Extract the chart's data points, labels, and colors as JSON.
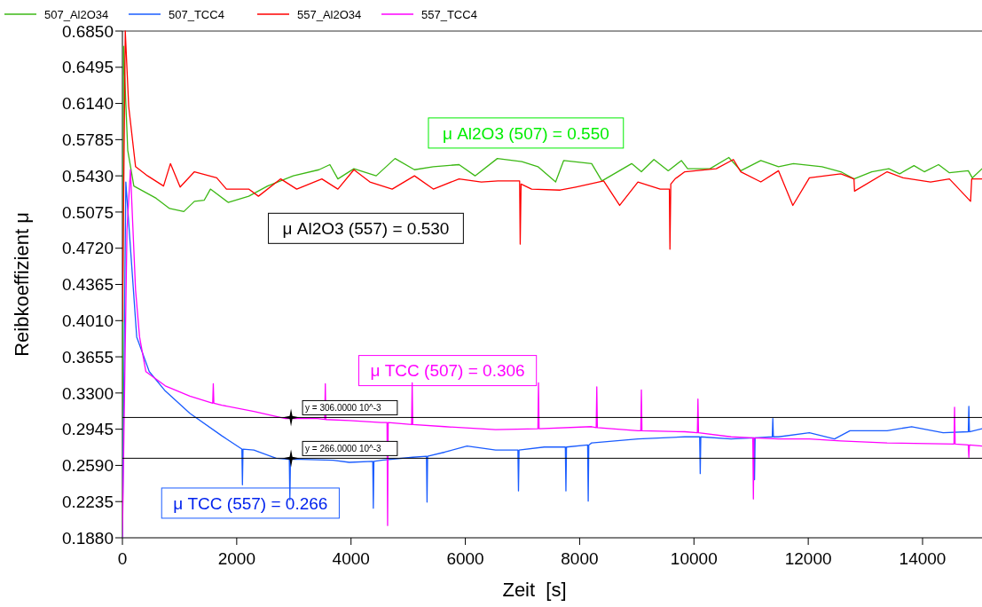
{
  "chart_data": {
    "type": "line",
    "xlabel": "Zeit  [s]",
    "ylabel": "Reibkoeffizient μ",
    "legend": "top left",
    "xlim": [
      0,
      15040
    ],
    "ylim": [
      0.188,
      0.685
    ],
    "xticks": [
      0,
      2000,
      4000,
      6000,
      8000,
      10000,
      12000,
      14000
    ],
    "yticks": [
      {
        "value": 0.188,
        "label": "0.1880"
      },
      {
        "value": 0.2235,
        "label": "0.2235"
      },
      {
        "value": 0.259,
        "label": "0.2590"
      },
      {
        "value": 0.2945,
        "label": "0.2945"
      },
      {
        "value": 0.33,
        "label": "0.3300"
      },
      {
        "value": 0.3655,
        "label": "0.3655"
      },
      {
        "value": 0.401,
        "label": "0.4010"
      },
      {
        "value": 0.4365,
        "label": "0.4365"
      },
      {
        "value": 0.472,
        "label": "0.4720"
      },
      {
        "value": 0.5075,
        "label": "0.5075"
      },
      {
        "value": 0.543,
        "label": "0.5430"
      },
      {
        "value": 0.5785,
        "label": "0.5785"
      },
      {
        "value": 0.614,
        "label": "0.6140"
      },
      {
        "value": 0.6495,
        "label": "0.6495"
      },
      {
        "value": 0.685,
        "label": "0.6850"
      }
    ],
    "series": [
      {
        "name": "507_Al2O34",
        "color": "#3cb814",
        "x": [
          0,
          20,
          93,
          200,
          590,
          825,
          1075,
          1260,
          1430,
          1540,
          1850,
          2210,
          2540,
          2990,
          3440,
          3630,
          3770,
          4050,
          4440,
          4770,
          5110,
          5440,
          5890,
          6170,
          6560,
          6990,
          7270,
          7580,
          7720,
          8210,
          8390,
          8910,
          9080,
          9300,
          9550,
          9780,
          9890,
          10280,
          10610,
          10820,
          11170,
          11480,
          11740,
          12240,
          12570,
          12800,
          13110,
          13410,
          13600,
          13850,
          14030,
          14280,
          14470,
          14800,
          14870,
          15040
        ],
        "values": [
          0.2,
          0.67,
          0.568,
          0.533,
          0.521,
          0.511,
          0.508,
          0.518,
          0.519,
          0.53,
          0.517,
          0.523,
          0.533,
          0.543,
          0.549,
          0.554,
          0.54,
          0.55,
          0.543,
          0.56,
          0.549,
          0.552,
          0.554,
          0.543,
          0.56,
          0.557,
          0.552,
          0.537,
          0.558,
          0.555,
          0.538,
          0.555,
          0.547,
          0.559,
          0.548,
          0.558,
          0.55,
          0.55,
          0.561,
          0.548,
          0.558,
          0.552,
          0.555,
          0.552,
          0.547,
          0.54,
          0.547,
          0.55,
          0.545,
          0.553,
          0.547,
          0.554,
          0.546,
          0.548,
          0.541,
          0.55
        ]
      },
      {
        "name": "507_TCC4",
        "color": "#1a5cff",
        "x": [
          0,
          60,
          250,
          470,
          750,
          1180,
          1740,
          2090,
          2100,
          2110,
          2300,
          2690,
          2920,
          2930,
          2940,
          3130,
          3690,
          3970,
          4380,
          4390,
          4400,
          4530,
          5080,
          5320,
          5330,
          5340,
          5640,
          6030,
          6530,
          6920,
          6930,
          6940,
          7380,
          7750,
          7760,
          7770,
          8140,
          8150,
          8160,
          8210,
          9020,
          9840,
          10100,
          10110,
          10120,
          10650,
          11050,
          11060,
          11070,
          11370,
          11380,
          11390,
          11480,
          12020,
          12460,
          12730,
          13380,
          13810,
          14360,
          14800,
          14810,
          14820,
          15040
        ],
        "values": [
          0.189,
          0.537,
          0.385,
          0.351,
          0.332,
          0.31,
          0.288,
          0.275,
          0.24,
          0.275,
          0.274,
          0.266,
          0.265,
          0.225,
          0.265,
          0.265,
          0.264,
          0.262,
          0.263,
          0.217,
          0.263,
          0.264,
          0.267,
          0.268,
          0.223,
          0.268,
          0.272,
          0.278,
          0.274,
          0.274,
          0.234,
          0.274,
          0.277,
          0.277,
          0.234,
          0.277,
          0.279,
          0.224,
          0.279,
          0.281,
          0.285,
          0.287,
          0.287,
          0.251,
          0.287,
          0.285,
          0.286,
          0.245,
          0.286,
          0.287,
          0.305,
          0.287,
          0.287,
          0.291,
          0.285,
          0.293,
          0.293,
          0.297,
          0.291,
          0.292,
          0.317,
          0.292,
          0.295
        ]
      },
      {
        "name": "557_Al2O34",
        "color": "#ff0000",
        "x": [
          0,
          50,
          110,
          230,
          440,
          720,
          840,
          1010,
          1260,
          1650,
          1820,
          2210,
          2380,
          2770,
          3050,
          3490,
          3770,
          4050,
          4330,
          4720,
          5110,
          5440,
          5890,
          6280,
          6570,
          6950,
          6960,
          6975,
          7160,
          7660,
          7930,
          8420,
          8700,
          9020,
          9410,
          9570,
          9580,
          9595,
          9670,
          9840,
          10390,
          10690,
          10820,
          11170,
          11480,
          11730,
          12020,
          12570,
          12800,
          12810,
          13380,
          13660,
          14140,
          14470,
          14840,
          14860,
          15040
        ],
        "values": [
          0.4,
          0.685,
          0.611,
          0.552,
          0.543,
          0.533,
          0.555,
          0.532,
          0.547,
          0.541,
          0.53,
          0.53,
          0.523,
          0.54,
          0.53,
          0.54,
          0.53,
          0.549,
          0.537,
          0.53,
          0.543,
          0.53,
          0.54,
          0.537,
          0.538,
          0.538,
          0.476,
          0.535,
          0.53,
          0.529,
          0.532,
          0.538,
          0.514,
          0.537,
          0.53,
          0.53,
          0.471,
          0.535,
          0.54,
          0.547,
          0.55,
          0.559,
          0.547,
          0.537,
          0.548,
          0.514,
          0.541,
          0.545,
          0.54,
          0.528,
          0.547,
          0.541,
          0.537,
          0.54,
          0.518,
          0.54,
          0.54
        ]
      },
      {
        "name": "557_TCC4",
        "color": "#ff00ff",
        "x": [
          0,
          80,
          140,
          230,
          300,
          410,
          750,
          1180,
          1580,
          1590,
          1600,
          1740,
          2300,
          2850,
          3410,
          3540,
          3550,
          3560,
          3970,
          4530,
          4630,
          4640,
          4650,
          5060,
          5070,
          5080,
          5640,
          6530,
          7270,
          7280,
          7290,
          8210,
          8290,
          8300,
          8310,
          9020,
          9070,
          9080,
          9090,
          9840,
          10060,
          10070,
          10080,
          10650,
          11030,
          11040,
          11050,
          11480,
          12020,
          12570,
          13380,
          14550,
          14560,
          14570,
          14800,
          14810,
          14820,
          15040
        ],
        "values": [
          0.189,
          0.49,
          0.549,
          0.431,
          0.385,
          0.351,
          0.337,
          0.327,
          0.32,
          0.339,
          0.32,
          0.318,
          0.312,
          0.305,
          0.305,
          0.304,
          0.339,
          0.304,
          0.303,
          0.301,
          0.301,
          0.2,
          0.301,
          0.299,
          0.34,
          0.299,
          0.297,
          0.294,
          0.295,
          0.34,
          0.295,
          0.297,
          0.296,
          0.336,
          0.296,
          0.293,
          0.293,
          0.333,
          0.293,
          0.292,
          0.291,
          0.324,
          0.291,
          0.287,
          0.286,
          0.226,
          0.286,
          0.285,
          0.285,
          0.283,
          0.281,
          0.28,
          0.316,
          0.28,
          0.279,
          0.267,
          0.279,
          0.278
        ]
      },
      {
        "type": "scatter",
        "marker": "star",
        "color": "#000000",
        "x": [
          2950,
          2950
        ],
        "values": [
          0.306,
          0.266
        ]
      }
    ],
    "ref_lines": [
      {
        "axis": "y",
        "value": 0.306,
        "label": "y = 306.0000 10^-3",
        "color": "#000000"
      },
      {
        "axis": "y",
        "value": 0.266,
        "label": "y = 266.0000 10^-3",
        "color": "#000000"
      }
    ],
    "annotations": [
      "μ Al2O3 (507) = 0.550",
      "μ Al2O3 (557) = 0.530",
      "μ TCC (507) = 0.306",
      "μ TCC (557) = 0.266"
    ]
  }
}
